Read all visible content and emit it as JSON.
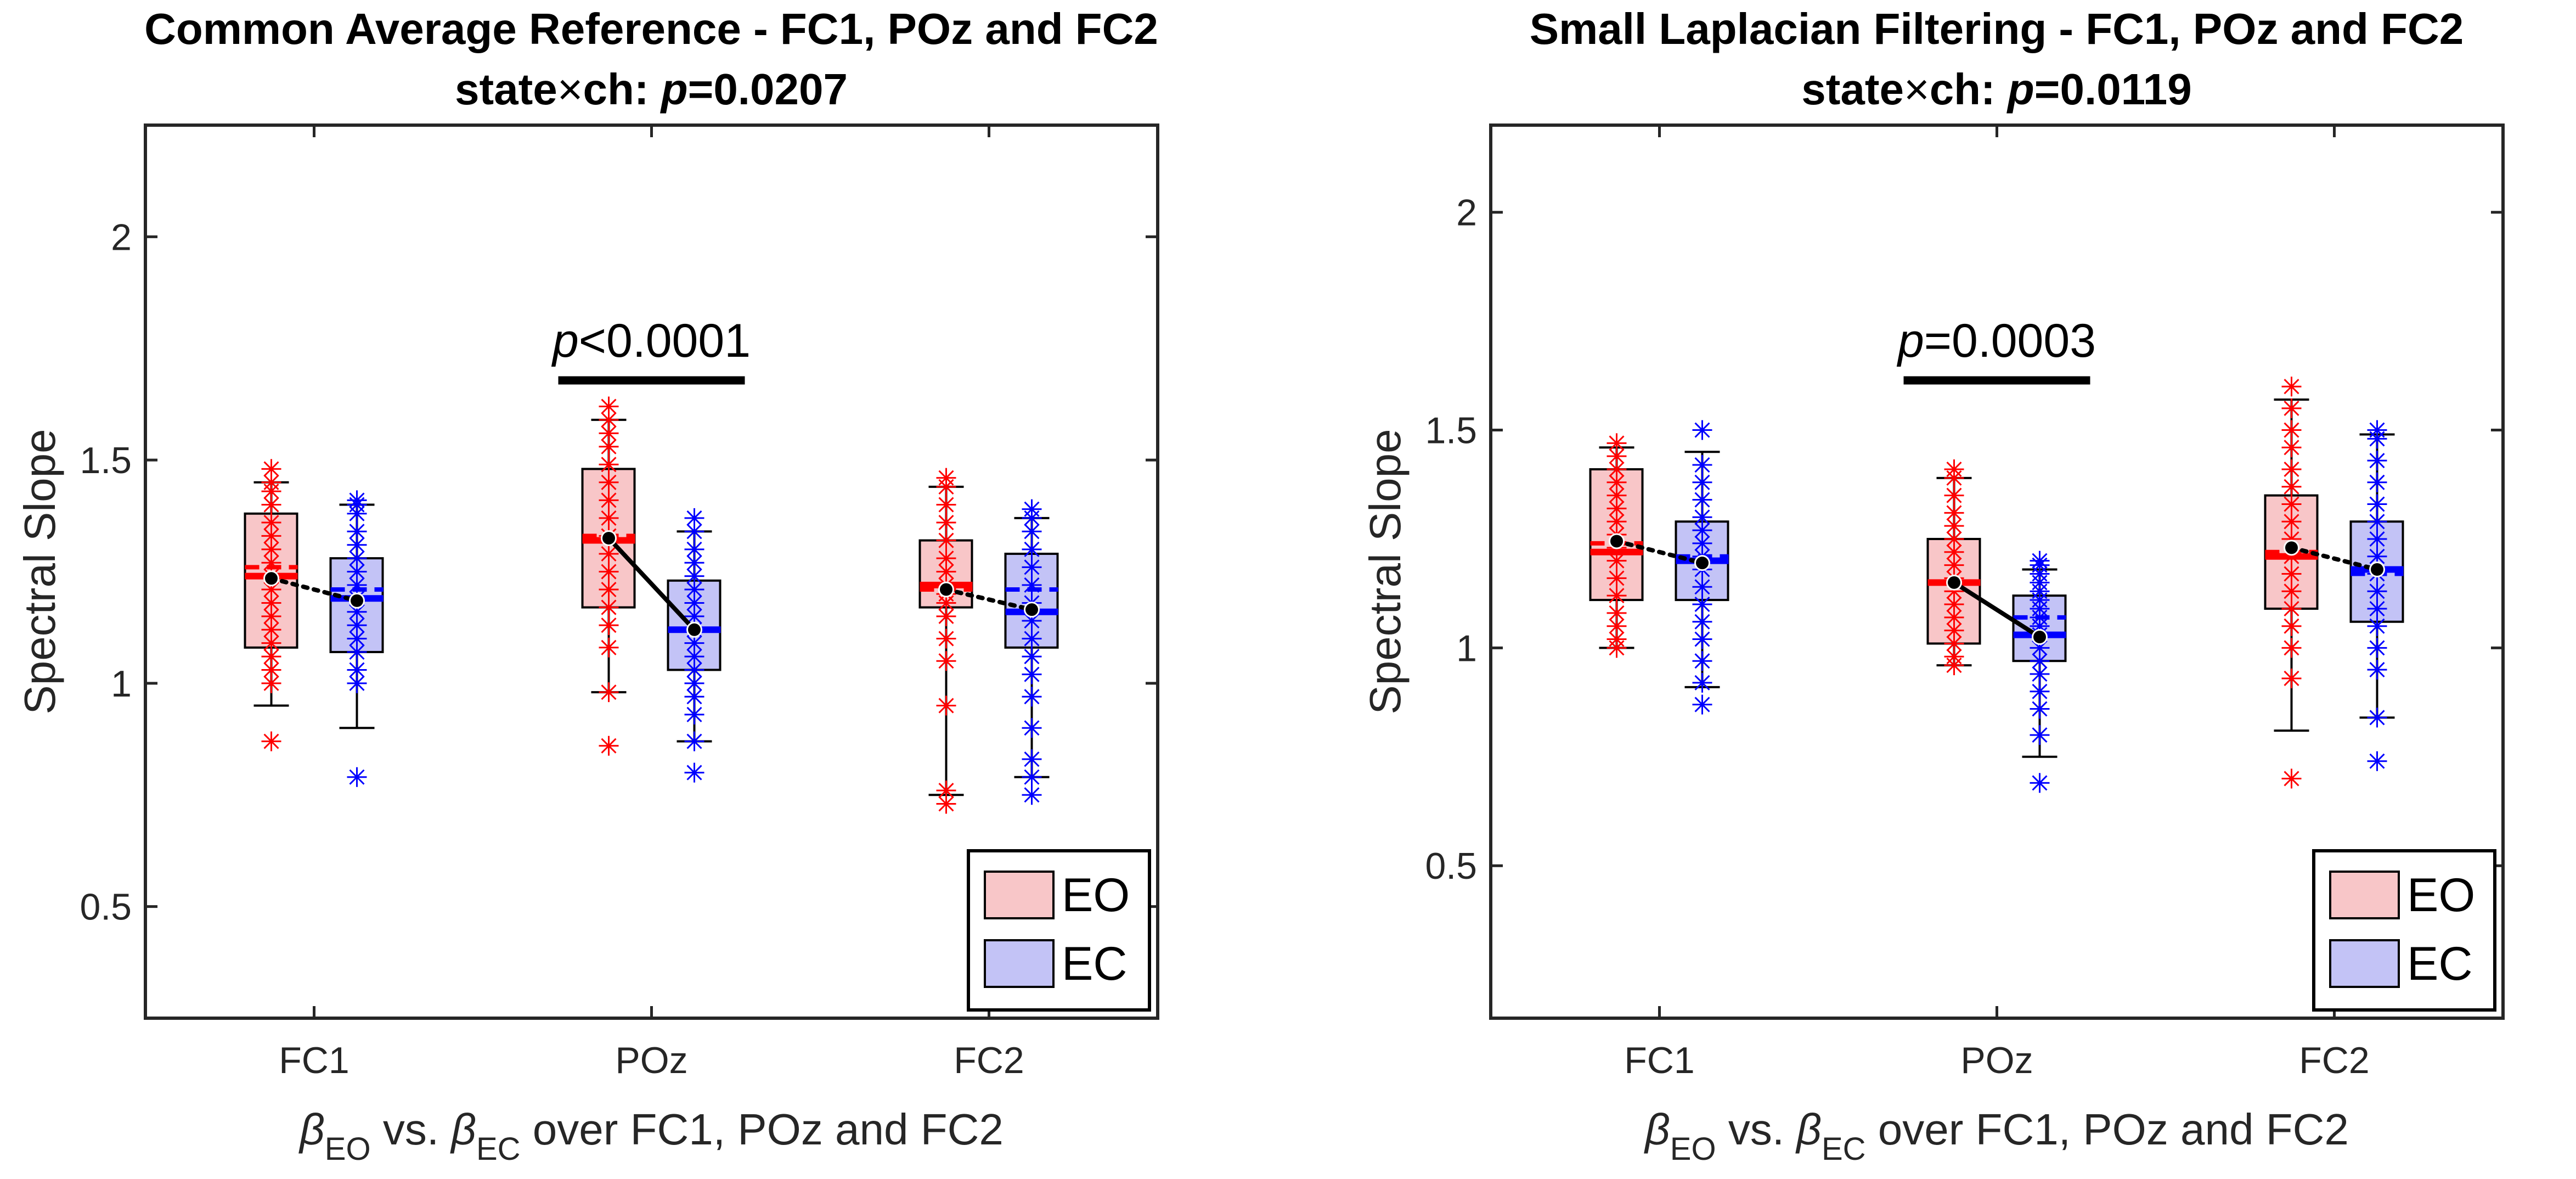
{
  "chart_data": [
    {
      "type": "box",
      "title": "Common Average Reference - FC1, POz and FC2",
      "subtitle_parts": {
        "pre": "state",
        "op": "×",
        "mid": "ch: ",
        "p": "p",
        "val": "=0.0207"
      },
      "xlabel_parts": {
        "b1": "β",
        "s1": "EO",
        "mid": " vs. ",
        "b2": "β",
        "s2": "EC",
        "post": " over FC1, POz and FC2"
      },
      "ylabel": "Spectral Slope",
      "ylim": [
        0.25,
        2.25
      ],
      "yticks": [
        0.5,
        1,
        1.5,
        2
      ],
      "ytick_labels": [
        "0.5",
        "1",
        "1.5",
        "2"
      ],
      "categories": [
        "FC1",
        "POz",
        "FC2"
      ],
      "series": [
        {
          "name": "EO",
          "color": "#ff0000",
          "fill": "#f8c6c8",
          "boxes": [
            {
              "min": 0.95,
              "q1": 1.08,
              "median": 1.24,
              "mean": 1.26,
              "q3": 1.38,
              "max": 1.45,
              "points": [
                0.87,
                1.0,
                1.03,
                1.06,
                1.09,
                1.12,
                1.15,
                1.18,
                1.21,
                1.24,
                1.27,
                1.3,
                1.33,
                1.36,
                1.4,
                1.43,
                1.45,
                1.48
              ]
            },
            {
              "min": 0.98,
              "q1": 1.17,
              "median": 1.32,
              "mean": 1.33,
              "q3": 1.48,
              "max": 1.59,
              "points": [
                0.86,
                0.98,
                1.08,
                1.13,
                1.17,
                1.21,
                1.25,
                1.29,
                1.33,
                1.37,
                1.41,
                1.45,
                1.49,
                1.53,
                1.56,
                1.59,
                1.62
              ]
            },
            {
              "min": 0.75,
              "q1": 1.17,
              "median": 1.22,
              "mean": 1.21,
              "q3": 1.32,
              "max": 1.44,
              "points": [
                0.73,
                0.76,
                0.95,
                1.05,
                1.1,
                1.15,
                1.18,
                1.2,
                1.22,
                1.25,
                1.28,
                1.32,
                1.36,
                1.4,
                1.44,
                1.46
              ]
            }
          ]
        },
        {
          "name": "EC",
          "color": "#0000ff",
          "fill": "#c3c3f6",
          "boxes": [
            {
              "min": 0.9,
              "q1": 1.07,
              "median": 1.19,
              "mean": 1.21,
              "q3": 1.28,
              "max": 1.4,
              "points": [
                0.79,
                1.0,
                1.03,
                1.07,
                1.1,
                1.13,
                1.16,
                1.19,
                1.22,
                1.25,
                1.28,
                1.31,
                1.34,
                1.38,
                1.4,
                1.41
              ]
            },
            {
              "min": 0.87,
              "q1": 1.03,
              "median": 1.12,
              "mean": 1.12,
              "q3": 1.23,
              "max": 1.34,
              "points": [
                0.8,
                0.87,
                0.93,
                0.97,
                1.0,
                1.03,
                1.06,
                1.09,
                1.12,
                1.15,
                1.18,
                1.21,
                1.24,
                1.27,
                1.3,
                1.34,
                1.37
              ]
            },
            {
              "min": 0.79,
              "q1": 1.08,
              "median": 1.16,
              "mean": 1.21,
              "q3": 1.29,
              "max": 1.37,
              "points": [
                0.75,
                0.79,
                0.83,
                0.9,
                0.97,
                1.02,
                1.06,
                1.1,
                1.14,
                1.18,
                1.22,
                1.26,
                1.3,
                1.34,
                1.37,
                1.39
              ]
            }
          ]
        }
      ],
      "means": {
        "EO": [
          1.235,
          1.325,
          1.21
        ],
        "EC": [
          1.185,
          1.12,
          1.165
        ]
      },
      "mean_line_style": [
        "dotted",
        "solid",
        "dotted"
      ],
      "significance": {
        "category": "POz",
        "p": "p",
        "label": "<0.0001"
      },
      "legend": "bottom-right"
    },
    {
      "type": "box",
      "title": "Small Laplacian Filtering - FC1, POz and FC2",
      "subtitle_parts": {
        "pre": "state",
        "op": "×",
        "mid": "ch: ",
        "p": "p",
        "val": "=0.0119"
      },
      "xlabel_parts": {
        "b1": "β",
        "s1": "EO",
        "mid": " vs. ",
        "b2": "β",
        "s2": "EC",
        "post": " over FC1, POz and FC2"
      },
      "ylabel": "Spectral Slope",
      "ylim": [
        0.15,
        2.2
      ],
      "yticks": [
        0.5,
        1,
        1.5,
        2
      ],
      "ytick_labels": [
        "0.5",
        "1",
        "1.5",
        "2"
      ],
      "categories": [
        "FC1",
        "POz",
        "FC2"
      ],
      "series": [
        {
          "name": "EO",
          "color": "#ff0000",
          "fill": "#f8c6c8",
          "boxes": [
            {
              "min": 1.0,
              "q1": 1.11,
              "median": 1.22,
              "mean": 1.24,
              "q3": 1.41,
              "max": 1.46,
              "points": [
                1.0,
                1.02,
                1.05,
                1.08,
                1.12,
                1.16,
                1.2,
                1.23,
                1.26,
                1.29,
                1.32,
                1.35,
                1.38,
                1.41,
                1.44,
                1.47
              ]
            },
            {
              "min": 0.96,
              "q1": 1.01,
              "median": 1.15,
              "mean": 1.15,
              "q3": 1.25,
              "max": 1.39,
              "points": [
                0.96,
                0.98,
                1.01,
                1.04,
                1.07,
                1.1,
                1.13,
                1.16,
                1.19,
                1.22,
                1.25,
                1.28,
                1.31,
                1.35,
                1.39,
                1.41
              ]
            },
            {
              "min": 0.81,
              "q1": 1.09,
              "median": 1.21,
              "mean": 1.22,
              "q3": 1.35,
              "max": 1.57,
              "points": [
                0.7,
                0.93,
                1.0,
                1.05,
                1.09,
                1.13,
                1.17,
                1.21,
                1.25,
                1.29,
                1.33,
                1.37,
                1.41,
                1.46,
                1.5,
                1.55,
                1.6
              ]
            }
          ]
        },
        {
          "name": "EC",
          "color": "#0000ff",
          "fill": "#c3c3f6",
          "boxes": [
            {
              "min": 0.91,
              "q1": 1.11,
              "median": 1.2,
              "mean": 1.21,
              "q3": 1.29,
              "max": 1.45,
              "points": [
                0.87,
                0.92,
                0.97,
                1.02,
                1.06,
                1.1,
                1.14,
                1.18,
                1.21,
                1.24,
                1.27,
                1.3,
                1.34,
                1.38,
                1.42,
                1.5
              ]
            },
            {
              "min": 0.75,
              "q1": 0.97,
              "median": 1.03,
              "mean": 1.07,
              "q3": 1.12,
              "max": 1.18,
              "points": [
                0.69,
                0.8,
                0.86,
                0.9,
                0.94,
                0.97,
                1.0,
                1.03,
                1.05,
                1.07,
                1.09,
                1.11,
                1.13,
                1.15,
                1.17,
                1.19,
                1.2
              ]
            },
            {
              "min": 0.84,
              "q1": 1.06,
              "median": 1.18,
              "mean": 1.17,
              "q3": 1.29,
              "max": 1.49,
              "points": [
                0.74,
                0.84,
                0.95,
                1.0,
                1.05,
                1.09,
                1.13,
                1.17,
                1.21,
                1.25,
                1.29,
                1.33,
                1.38,
                1.43,
                1.48,
                1.5
              ]
            }
          ]
        }
      ],
      "means": {
        "EO": [
          1.245,
          1.15,
          1.23
        ],
        "EC": [
          1.195,
          1.025,
          1.18
        ]
      },
      "mean_line_style": [
        "dotted",
        "solid",
        "dotted"
      ],
      "significance": {
        "category": "POz",
        "p": "p",
        "label": "=0.0003"
      },
      "legend": "bottom-right"
    }
  ]
}
